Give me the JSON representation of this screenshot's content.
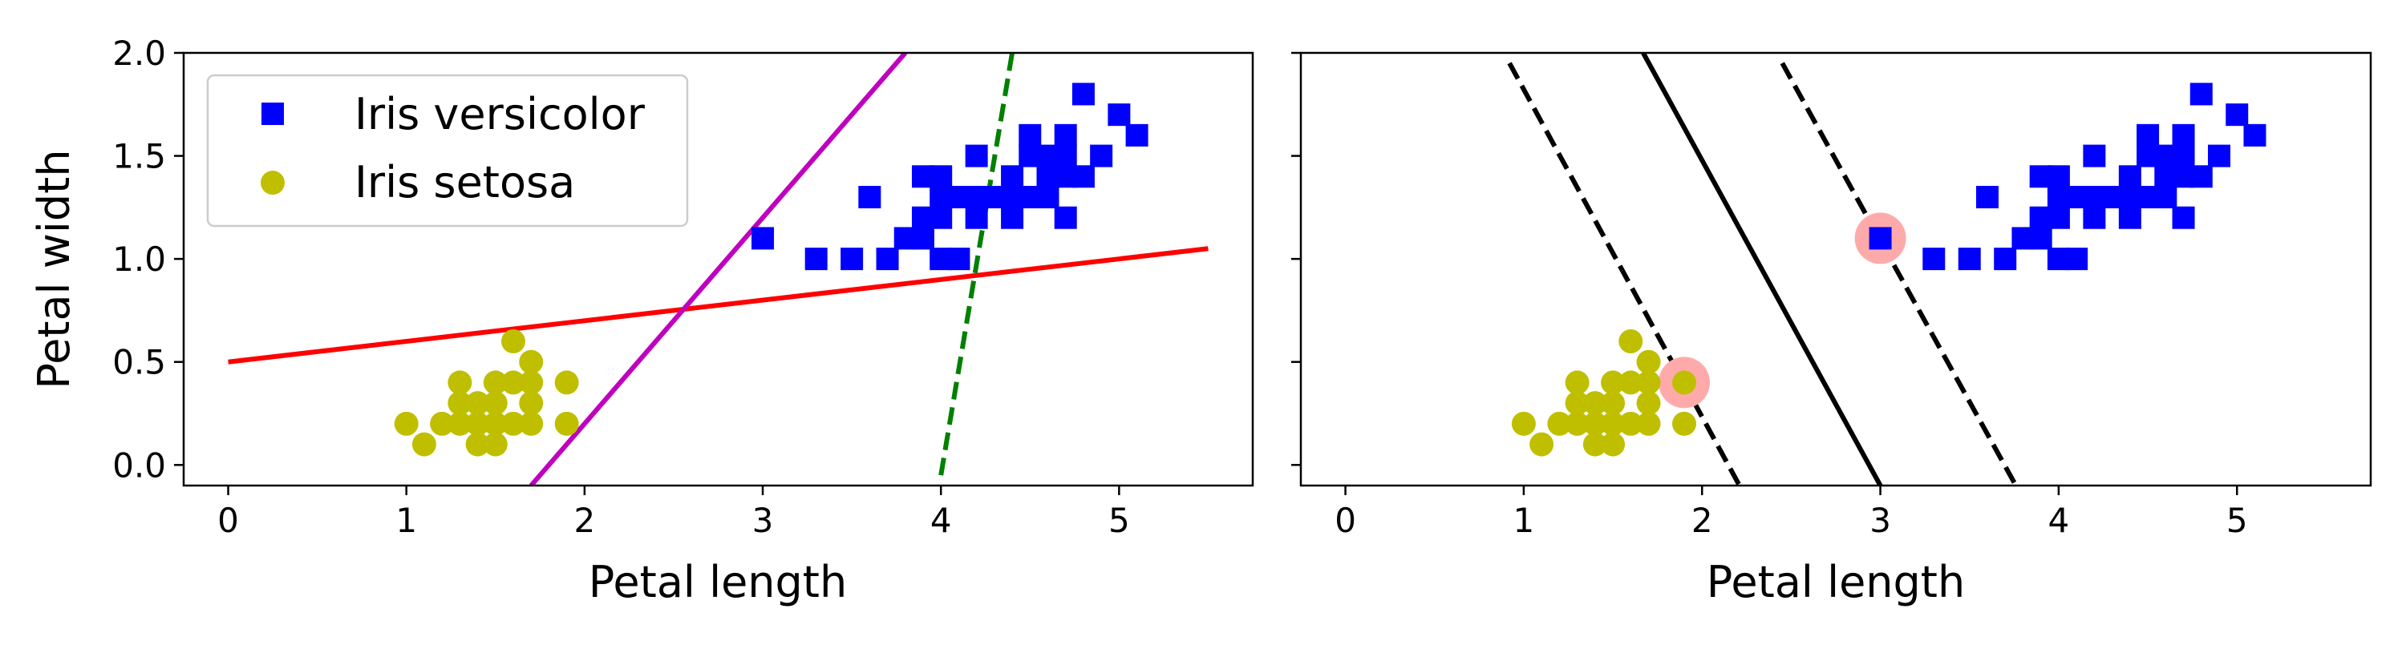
{
  "chart_data": [
    {
      "type": "scatter",
      "title": "",
      "xlabel": "Petal length",
      "ylabel": "Petal width",
      "xlim": [
        -0.25,
        5.75
      ],
      "ylim": [
        -0.1,
        2.0
      ],
      "xticks": [
        "0",
        "1",
        "2",
        "3",
        "4",
        "5"
      ],
      "yticks": [
        "0.0",
        "0.5",
        "1.0",
        "1.5",
        "2.0"
      ],
      "grid": false,
      "legend": {
        "placement": "top-left",
        "entries": [
          "Iris versicolor",
          "Iris setosa"
        ]
      },
      "series": [
        {
          "name": "Iris versicolor",
          "marker": "square",
          "color": "#0000ff",
          "points": [
            [
              3.0,
              1.1
            ],
            [
              3.3,
              1.0
            ],
            [
              3.5,
              1.0
            ],
            [
              3.6,
              1.3
            ],
            [
              3.7,
              1.0
            ],
            [
              3.8,
              1.1
            ],
            [
              3.9,
              1.1
            ],
            [
              3.9,
              1.2
            ],
            [
              4.0,
              1.0
            ],
            [
              4.0,
              1.2
            ],
            [
              4.0,
              1.3
            ],
            [
              4.1,
              1.0
            ],
            [
              4.1,
              1.3
            ],
            [
              4.2,
              1.2
            ],
            [
              4.2,
              1.3
            ],
            [
              4.2,
              1.5
            ],
            [
              4.3,
              1.3
            ],
            [
              4.4,
              1.2
            ],
            [
              4.4,
              1.3
            ],
            [
              4.4,
              1.4
            ],
            [
              4.5,
              1.3
            ],
            [
              4.5,
              1.5
            ],
            [
              4.6,
              1.3
            ],
            [
              4.6,
              1.4
            ],
            [
              4.6,
              1.5
            ],
            [
              4.7,
              1.2
            ],
            [
              4.7,
              1.4
            ],
            [
              4.7,
              1.5
            ],
            [
              4.8,
              1.4
            ],
            [
              4.8,
              1.8
            ],
            [
              4.9,
              1.5
            ],
            [
              5.0,
              1.7
            ],
            [
              5.1,
              1.6
            ],
            [
              4.0,
              1.4
            ],
            [
              4.5,
              1.6
            ],
            [
              4.7,
              1.6
            ],
            [
              3.9,
              1.4
            ]
          ]
        },
        {
          "name": "Iris setosa",
          "marker": "circle",
          "color": "#bfbf00",
          "points": [
            [
              1.0,
              0.2
            ],
            [
              1.1,
              0.1
            ],
            [
              1.2,
              0.2
            ],
            [
              1.3,
              0.2
            ],
            [
              1.3,
              0.3
            ],
            [
              1.3,
              0.4
            ],
            [
              1.4,
              0.1
            ],
            [
              1.4,
              0.2
            ],
            [
              1.4,
              0.3
            ],
            [
              1.5,
              0.1
            ],
            [
              1.5,
              0.2
            ],
            [
              1.5,
              0.3
            ],
            [
              1.5,
              0.4
            ],
            [
              1.6,
              0.2
            ],
            [
              1.6,
              0.4
            ],
            [
              1.6,
              0.6
            ],
            [
              1.7,
              0.2
            ],
            [
              1.7,
              0.3
            ],
            [
              1.7,
              0.4
            ],
            [
              1.7,
              0.5
            ],
            [
              1.9,
              0.2
            ],
            [
              1.9,
              0.4
            ]
          ]
        }
      ],
      "lines": [
        {
          "color": "#ff0000",
          "style": "solid",
          "x": [
            0,
            5.5
          ],
          "y": [
            0.5,
            1.05
          ]
        },
        {
          "color": "#bf00bf",
          "style": "solid",
          "x": [
            1.7,
            3.8
          ],
          "y": [
            -0.1,
            2.0
          ]
        },
        {
          "color": "#008000",
          "style": "dashed",
          "x": [
            4.0,
            4.4
          ],
          "y": [
            -0.05,
            2.0
          ]
        }
      ]
    },
    {
      "type": "scatter",
      "title": "",
      "xlabel": "Petal length",
      "ylabel": "",
      "xlim": [
        -0.25,
        5.75
      ],
      "ylim": [
        -0.1,
        2.0
      ],
      "xticks": [
        "0",
        "1",
        "2",
        "3",
        "4",
        "5"
      ],
      "yticks": [],
      "grid": false,
      "series": [
        {
          "name": "Iris versicolor",
          "marker": "square",
          "color": "#0000ff",
          "points": [
            [
              3.0,
              1.1
            ],
            [
              3.3,
              1.0
            ],
            [
              3.5,
              1.0
            ],
            [
              3.6,
              1.3
            ],
            [
              3.7,
              1.0
            ],
            [
              3.8,
              1.1
            ],
            [
              3.9,
              1.1
            ],
            [
              3.9,
              1.2
            ],
            [
              4.0,
              1.0
            ],
            [
              4.0,
              1.2
            ],
            [
              4.0,
              1.3
            ],
            [
              4.1,
              1.0
            ],
            [
              4.1,
              1.3
            ],
            [
              4.2,
              1.2
            ],
            [
              4.2,
              1.3
            ],
            [
              4.2,
              1.5
            ],
            [
              4.3,
              1.3
            ],
            [
              4.4,
              1.2
            ],
            [
              4.4,
              1.3
            ],
            [
              4.4,
              1.4
            ],
            [
              4.5,
              1.3
            ],
            [
              4.5,
              1.5
            ],
            [
              4.6,
              1.3
            ],
            [
              4.6,
              1.4
            ],
            [
              4.6,
              1.5
            ],
            [
              4.7,
              1.2
            ],
            [
              4.7,
              1.4
            ],
            [
              4.7,
              1.5
            ],
            [
              4.8,
              1.4
            ],
            [
              4.8,
              1.8
            ],
            [
              4.9,
              1.5
            ],
            [
              5.0,
              1.7
            ],
            [
              5.1,
              1.6
            ],
            [
              4.0,
              1.4
            ],
            [
              4.5,
              1.6
            ],
            [
              4.7,
              1.6
            ],
            [
              3.9,
              1.4
            ]
          ]
        },
        {
          "name": "Iris setosa",
          "marker": "circle",
          "color": "#bfbf00",
          "points": [
            [
              1.0,
              0.2
            ],
            [
              1.1,
              0.1
            ],
            [
              1.2,
              0.2
            ],
            [
              1.3,
              0.2
            ],
            [
              1.3,
              0.3
            ],
            [
              1.3,
              0.4
            ],
            [
              1.4,
              0.1
            ],
            [
              1.4,
              0.2
            ],
            [
              1.4,
              0.3
            ],
            [
              1.5,
              0.1
            ],
            [
              1.5,
              0.2
            ],
            [
              1.5,
              0.3
            ],
            [
              1.5,
              0.4
            ],
            [
              1.6,
              0.2
            ],
            [
              1.6,
              0.4
            ],
            [
              1.6,
              0.6
            ],
            [
              1.7,
              0.2
            ],
            [
              1.7,
              0.3
            ],
            [
              1.7,
              0.4
            ],
            [
              1.7,
              0.5
            ],
            [
              1.9,
              0.2
            ],
            [
              1.9,
              0.4
            ]
          ]
        }
      ],
      "support_vectors": {
        "color": "#ffaaaa",
        "points": [
          [
            1.9,
            0.4
          ],
          [
            3.0,
            1.1
          ]
        ]
      },
      "lines": [
        {
          "color": "#000000",
          "style": "solid",
          "x": [
            1.67,
            3.0
          ],
          "y": [
            2.0,
            -0.1
          ]
        },
        {
          "color": "#000000",
          "style": "dashed",
          "x": [
            0.92,
            2.21
          ],
          "y": [
            1.95,
            -0.1
          ]
        },
        {
          "color": "#000000",
          "style": "dashed",
          "x": [
            2.45,
            3.76
          ],
          "y": [
            1.95,
            -0.1
          ]
        }
      ]
    }
  ]
}
